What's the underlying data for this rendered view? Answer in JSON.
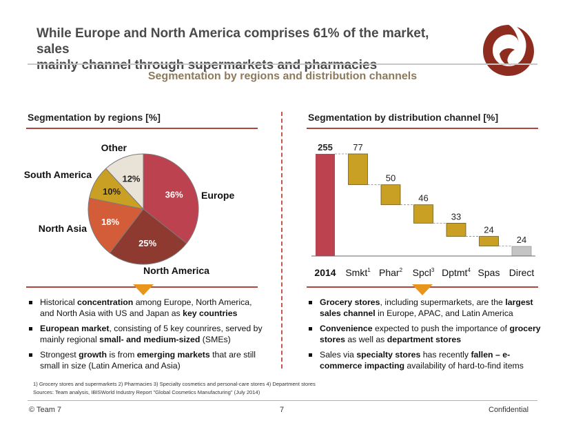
{
  "header": {
    "title_line1": "While Europe and North America comprises 61% of the market, sales",
    "title_line2": "mainly channel through supermarkets and pharmacies",
    "subtitle": "Segmentation by regions and distribution channels",
    "logo_icon": "swirl-logo-icon"
  },
  "left": {
    "section_title": "Segmentation by regions [%]",
    "bullets": [
      {
        "parts": [
          {
            "t": "Historical "
          },
          {
            "t": "concentration",
            "b": true
          },
          {
            "t": " among Europe, North America, and North Asia with US and Japan as "
          },
          {
            "t": "key countries",
            "b": true
          }
        ]
      },
      {
        "parts": [
          {
            "t": "European market",
            "b": true
          },
          {
            "t": ", consisting of 5 key counrires, served by mainly regional "
          },
          {
            "t": "small- and medium-sized",
            "b": true
          },
          {
            "t": " (SMEs)"
          }
        ]
      },
      {
        "parts": [
          {
            "t": "Strongest "
          },
          {
            "t": "growth",
            "b": true
          },
          {
            "t": " is from "
          },
          {
            "t": "emerging markets",
            "b": true
          },
          {
            "t": " that are still small in size (Latin America and Asia)"
          }
        ]
      }
    ]
  },
  "right": {
    "section_title": "Segmentation by distribution channel [%]",
    "bullets": [
      {
        "parts": [
          {
            "t": "Grocery stores",
            "b": true
          },
          {
            "t": ", including supermarkets, are the "
          },
          {
            "t": "largest sales channel",
            "b": true
          },
          {
            "t": " in Europe, APAC, and Latin America"
          }
        ]
      },
      {
        "parts": [
          {
            "t": "Convenience",
            "b": true
          },
          {
            "t": " expected to push the importance of "
          },
          {
            "t": "grocery stores",
            "b": true
          },
          {
            "t": " as well as "
          },
          {
            "t": "department stores",
            "b": true
          }
        ]
      },
      {
        "parts": [
          {
            "t": "Sales via "
          },
          {
            "t": "specialty stores",
            "b": true
          },
          {
            "t": " has recently "
          },
          {
            "t": "fallen – e-commerce impacting",
            "b": true
          },
          {
            "t": " availability of hard-to-find items"
          }
        ]
      }
    ]
  },
  "footnotes": {
    "line1": "1) Grocery stores and supermarkets   2) Pharmacies   3) Specialty cosmetics and personal-care stores   4) Department stores",
    "line2": "Sources: Team analysis, IBISWorld Industry Report \"Global Cosmetics Manufacturing\" (July 2014)"
  },
  "footer": {
    "left": "© Team 7",
    "page": "7",
    "right": "Confidential"
  },
  "colors": {
    "europe": "#bd4250",
    "north_america": "#8e3a30",
    "north_asia": "#d35d38",
    "south_america": "#c9a024",
    "other": "#e9e2d6",
    "total_bar": "#bd4250",
    "step_bar": "#c9a024",
    "direct_bar": "#c4c4c4",
    "accent_rule": "#b0443a"
  },
  "chart_data": [
    {
      "type": "pie",
      "title": "Segmentation by regions [%]",
      "slices": [
        {
          "label": "Europe",
          "value": 36,
          "value_label": "36%",
          "color": "#bd4250"
        },
        {
          "label": "North America",
          "value": 25,
          "value_label": "25%",
          "color": "#8e3a30"
        },
        {
          "label": "North Asia",
          "value": 18,
          "value_label": "18%",
          "color": "#d35d38"
        },
        {
          "label": "South America",
          "value": 10,
          "value_label": "10%",
          "color": "#c9a024"
        },
        {
          "label": "Other",
          "value": 12,
          "value_label": "12%",
          "color": "#e9e2d6"
        }
      ]
    },
    {
      "type": "bar",
      "subtype": "waterfall",
      "title": "Segmentation by distribution channel [%]",
      "ymax": 255,
      "bars": [
        {
          "label": "2014",
          "sup": "",
          "value": 255,
          "kind": "total",
          "color": "#bd4250"
        },
        {
          "label": "Smkt",
          "sup": "1",
          "value": 77,
          "kind": "step",
          "color": "#c9a024"
        },
        {
          "label": "Phar",
          "sup": "2",
          "value": 50,
          "kind": "step",
          "color": "#c9a024"
        },
        {
          "label": "Spcl",
          "sup": "3",
          "value": 46,
          "kind": "step",
          "color": "#c9a024"
        },
        {
          "label": "Dptmt",
          "sup": "4",
          "value": 33,
          "kind": "step",
          "color": "#c9a024"
        },
        {
          "label": "Spas",
          "sup": "",
          "value": 24,
          "kind": "step",
          "color": "#c9a024"
        },
        {
          "label": "Direct",
          "sup": "",
          "value": 24,
          "kind": "end",
          "color": "#c4c4c4"
        }
      ]
    }
  ]
}
